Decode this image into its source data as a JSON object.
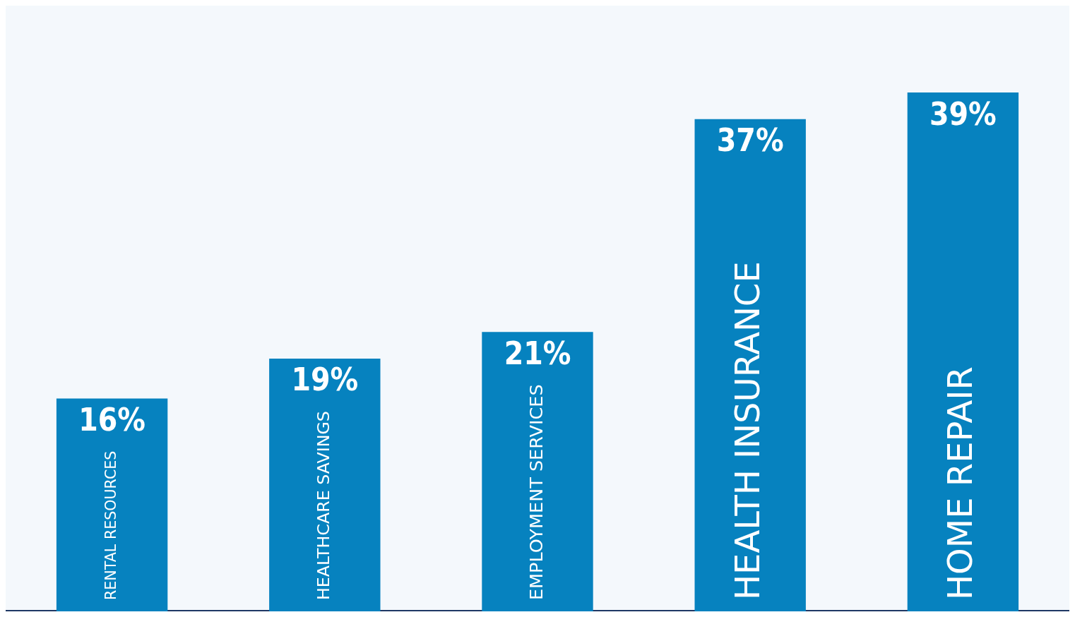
{
  "chart_data": {
    "type": "bar",
    "categories": [
      "RENTAL RESOURCES",
      "HEALTHCARE SAVINGS",
      "EMPLOYMENT SERVICES",
      "HEALTH INSURANCE",
      "HOME REPAIR"
    ],
    "values": [
      16,
      19,
      21,
      37,
      39
    ],
    "value_labels": [
      "16%",
      "19%",
      "21%",
      "37%",
      "39%"
    ],
    "color": "#0682bf",
    "grid": false,
    "legend": false,
    "tick_labels": false
  }
}
